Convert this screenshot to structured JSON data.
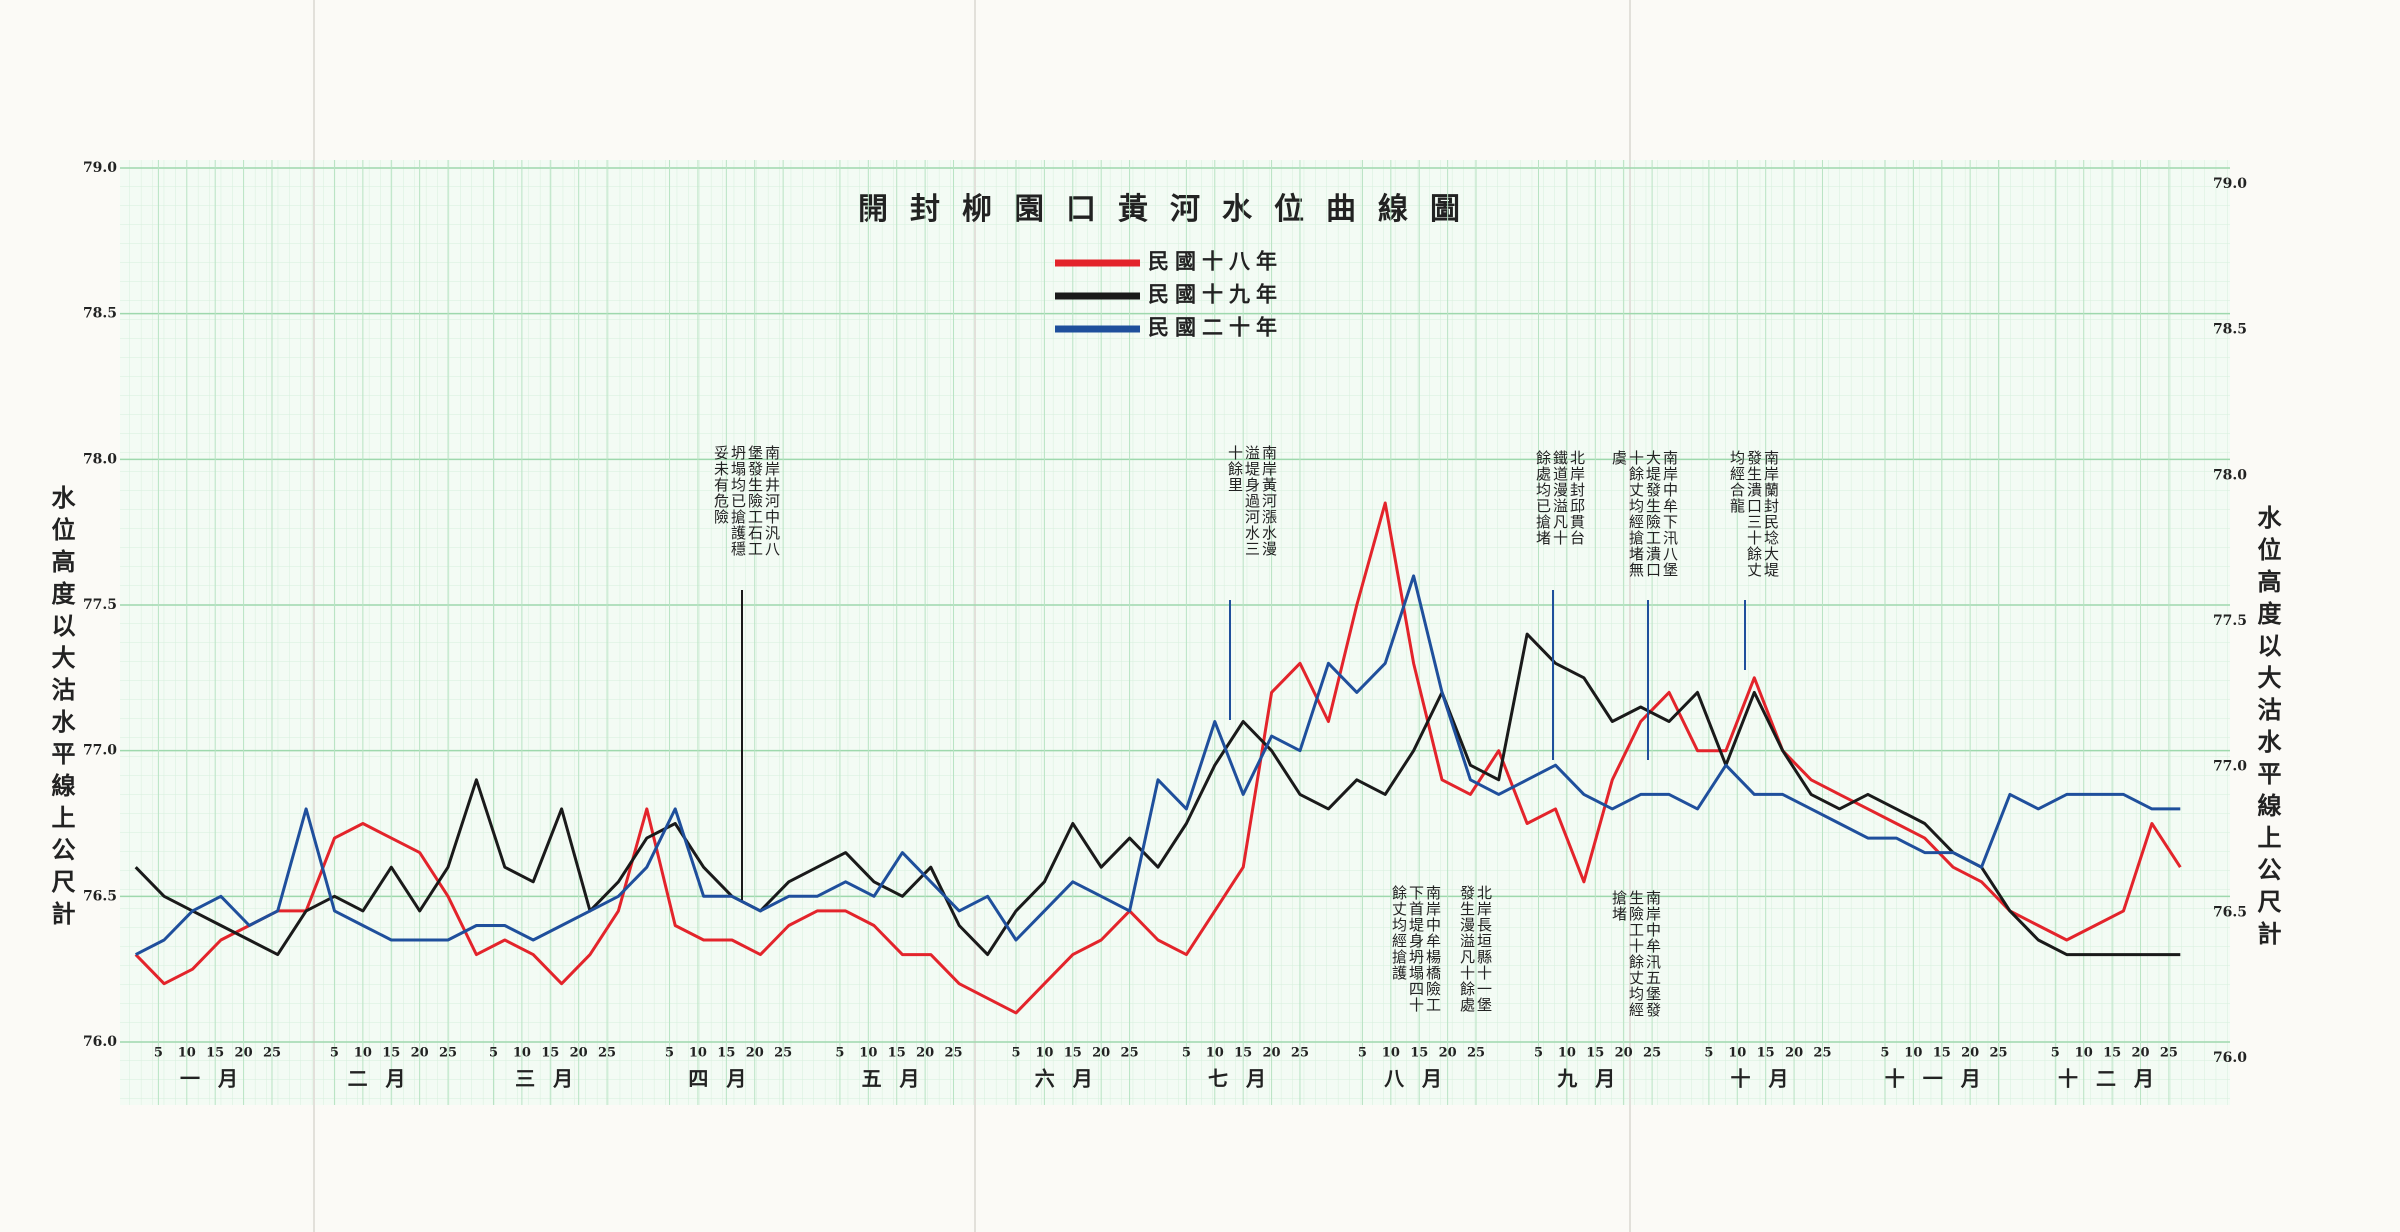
{
  "chart_data": {
    "type": "line",
    "title": "開封柳園口黃河水位曲線圖",
    "y_label": "水位高度以大沽水平線上公尺計",
    "xlim": [
      0,
      365
    ],
    "ylim": [
      76,
      79
    ],
    "yticks": [
      {
        "value": 76,
        "label": "76.0"
      },
      76.5,
      {
        "value": 77,
        "label": "77.0"
      },
      77.5,
      {
        "value": 78,
        "label": "78.0"
      },
      78.5,
      {
        "value": 79,
        "label": "79.0"
      }
    ],
    "xticks": [
      5,
      10,
      15,
      20,
      25,
      {
        "value": 36,
        "label": "5"
      },
      {
        "value": 41,
        "label": "10"
      },
      {
        "value": 46,
        "label": "15"
      },
      {
        "value": 51,
        "label": "20"
      },
      {
        "value": 56,
        "label": "25"
      },
      {
        "value": 64,
        "label": "5"
      },
      {
        "value": 69,
        "label": "10"
      },
      {
        "value": 74,
        "label": "15"
      },
      {
        "value": 79,
        "label": "20"
      },
      {
        "value": 84,
        "label": "25"
      },
      {
        "value": 95,
        "label": "5"
      },
      {
        "value": 100,
        "label": "10"
      },
      {
        "value": 105,
        "label": "15"
      },
      {
        "value": 110,
        "label": "20"
      },
      {
        "value": 115,
        "label": "25"
      },
      {
        "value": 125,
        "label": "5"
      },
      {
        "value": 130,
        "label": "10"
      },
      {
        "value": 135,
        "label": "15"
      },
      {
        "value": 140,
        "label": "20"
      },
      {
        "value": 145,
        "label": "25"
      },
      {
        "value": 156,
        "label": "5"
      },
      {
        "value": 161,
        "label": "10"
      },
      {
        "value": 166,
        "label": "15"
      },
      {
        "value": 171,
        "label": "20"
      },
      {
        "value": 176,
        "label": "25"
      },
      {
        "value": 186,
        "label": "5"
      },
      {
        "value": 191,
        "label": "10"
      },
      {
        "value": 196,
        "label": "15"
      },
      {
        "value": 201,
        "label": "20"
      },
      {
        "value": 206,
        "label": "25"
      },
      {
        "value": 217,
        "label": "5"
      },
      {
        "value": 222,
        "label": "10"
      },
      {
        "value": 227,
        "label": "15"
      },
      {
        "value": 232,
        "label": "20"
      },
      {
        "value": 237,
        "label": "25"
      },
      {
        "value": 248,
        "label": "5"
      },
      {
        "value": 253,
        "label": "10"
      },
      {
        "value": 258,
        "label": "15"
      },
      {
        "value": 263,
        "label": "20"
      },
      {
        "value": 268,
        "label": "25"
      },
      {
        "value": 278,
        "label": "5"
      },
      {
        "value": 283,
        "label": "10"
      },
      {
        "value": 288,
        "label": "15"
      },
      {
        "value": 293,
        "label": "20"
      },
      {
        "value": 298,
        "label": "25"
      },
      {
        "value": 309,
        "label": "5"
      },
      {
        "value": 314,
        "label": "10"
      },
      {
        "value": 319,
        "label": "15"
      },
      {
        "value": 324,
        "label": "20"
      },
      {
        "value": 329,
        "label": "25"
      },
      {
        "value": 339,
        "label": "5"
      },
      {
        "value": 344,
        "label": "10"
      },
      {
        "value": 349,
        "label": "15"
      },
      {
        "value": 354,
        "label": "20"
      },
      {
        "value": 359,
        "label": "25"
      }
    ],
    "month_labels": [
      "一月",
      "二月",
      "三月",
      "四月",
      "五月",
      "六月",
      "七月",
      "八月",
      "九月",
      "十月",
      "十一月",
      "十二月"
    ],
    "grid": true,
    "x": [
      1,
      6,
      11,
      16,
      21,
      26,
      31,
      36,
      41,
      46,
      51,
      56,
      61,
      66,
      71,
      76,
      81,
      86,
      91,
      96,
      101,
      106,
      111,
      116,
      121,
      126,
      131,
      136,
      141,
      146,
      151,
      156,
      161,
      166,
      171,
      176,
      181,
      186,
      191,
      196,
      201,
      206,
      211,
      216,
      221,
      226,
      231,
      236,
      241,
      246,
      251,
      256,
      261,
      266,
      271,
      276,
      281,
      286,
      291,
      296,
      301,
      306,
      311,
      316,
      321,
      326,
      331,
      336,
      341,
      346,
      351,
      356,
      361
    ],
    "series": [
      {
        "name": "民國十八年",
        "color": "#e3242b",
        "values": [
          76.3,
          76.2,
          76.25,
          76.35,
          76.4,
          76.45,
          76.45,
          76.7,
          76.75,
          76.7,
          76.65,
          76.5,
          76.3,
          76.35,
          76.3,
          76.2,
          76.3,
          76.45,
          76.8,
          76.4,
          76.35,
          76.35,
          76.3,
          76.4,
          76.45,
          76.45,
          76.4,
          76.3,
          76.3,
          76.2,
          76.15,
          76.1,
          76.2,
          76.3,
          76.35,
          76.45,
          76.35,
          76.3,
          76.45,
          76.6,
          77.2,
          77.3,
          77.1,
          77.5,
          77.85,
          77.3,
          76.9,
          76.85,
          77.0,
          76.75,
          76.8,
          76.55,
          76.9,
          77.1,
          77.2,
          77.0,
          77.0,
          77.25,
          77.0,
          76.9,
          76.85,
          76.8,
          76.75,
          76.7,
          76.6,
          76.55,
          76.45,
          76.4,
          76.35,
          76.4,
          76.45,
          76.75,
          76.6
        ]
      },
      {
        "name": "民國十九年",
        "color": "#1a1a1a",
        "values": [
          76.6,
          76.5,
          76.45,
          76.4,
          76.35,
          76.3,
          76.45,
          76.5,
          76.45,
          76.6,
          76.45,
          76.6,
          76.9,
          76.6,
          76.55,
          76.8,
          76.45,
          76.55,
          76.7,
          76.75,
          76.6,
          76.5,
          76.45,
          76.55,
          76.6,
          76.65,
          76.55,
          76.5,
          76.6,
          76.4,
          76.3,
          76.45,
          76.55,
          76.75,
          76.6,
          76.7,
          76.6,
          76.75,
          76.95,
          77.1,
          77.0,
          76.85,
          76.8,
          76.9,
          76.85,
          77.0,
          77.2,
          76.95,
          76.9,
          77.4,
          77.3,
          77.25,
          77.1,
          77.15,
          77.1,
          77.2,
          76.95,
          77.2,
          77.0,
          76.85,
          76.8,
          76.85,
          76.8,
          76.75,
          76.65,
          76.6,
          76.45,
          76.35,
          76.3,
          76.3,
          76.3,
          76.3,
          76.3
        ]
      },
      {
        "name": "民國二十年",
        "color": "#1f4f9c",
        "values": [
          76.3,
          76.35,
          76.45,
          76.5,
          76.4,
          76.45,
          76.8,
          76.45,
          76.4,
          76.35,
          76.35,
          76.35,
          76.4,
          76.4,
          76.35,
          76.4,
          76.45,
          76.5,
          76.6,
          76.8,
          76.5,
          76.5,
          76.45,
          76.5,
          76.5,
          76.55,
          76.5,
          76.65,
          76.55,
          76.45,
          76.5,
          76.35,
          76.45,
          76.55,
          76.5,
          76.45,
          76.9,
          76.8,
          77.1,
          76.85,
          77.05,
          77.0,
          77.3,
          77.2,
          77.3,
          77.6,
          77.2,
          76.9,
          76.85,
          76.9,
          76.95,
          76.85,
          76.8,
          76.85,
          76.85,
          76.8,
          76.95,
          76.85,
          76.85,
          76.8,
          76.75,
          76.7,
          76.7,
          76.65,
          76.65,
          76.6,
          76.85,
          76.8,
          76.85,
          76.85,
          76.85,
          76.8,
          76.8
        ]
      }
    ],
    "annotations": [
      "南岸井河中汎八堡發生險工石工坍塌均已搶護穩妥未有危險",
      "南岸黃河漲水漫溢堤身過河水三十餘里",
      "北岸封邱貫台鐵道漫溢凡十餘處均已搶堵",
      "南岸中牟下汛八堡大堤發生險工潰口十餘丈均經搶堵無虞",
      "南岸蘭封民埝大堤發生潰口三十餘丈均經合龍",
      "南岸中牟楊橋險工下首堤身坍塌四十餘丈均經搶護",
      "北岸長垣縣十一堡發生漫溢凡十餘處",
      "南岸中牟汛五堡發生險工十餘丈均經搶堵"
    ]
  }
}
